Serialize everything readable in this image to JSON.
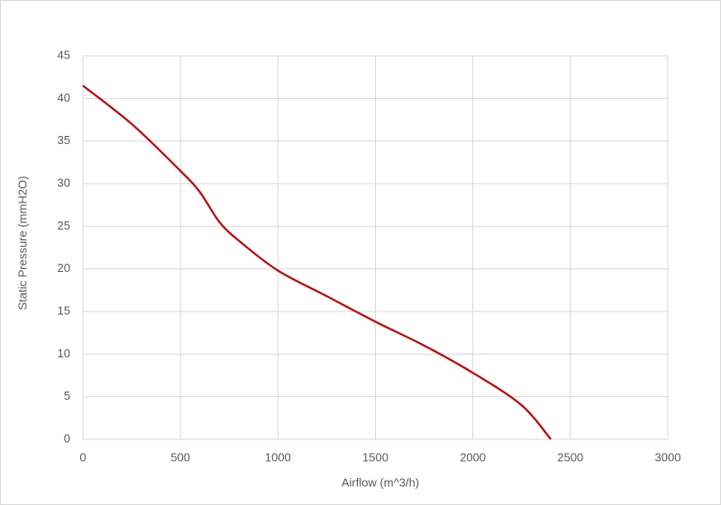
{
  "chart_data": {
    "type": "line",
    "x_label": "Airflow (m^3/h)",
    "y_label": "Static Pressure (mmH2O)",
    "x": [
      0,
      250,
      500,
      600,
      700,
      800,
      1000,
      1250,
      1500,
      1750,
      2000,
      2250,
      2400
    ],
    "series": [
      {
        "name": "Static Pressure",
        "color": "#c00000",
        "values": [
          41.5,
          37.0,
          31.5,
          29.0,
          25.5,
          23.3,
          19.8,
          16.8,
          13.8,
          11.0,
          7.8,
          4.0,
          0
        ]
      }
    ],
    "xlim": [
      0,
      3000
    ],
    "xticks": [
      0,
      500,
      1000,
      1500,
      2000,
      2500,
      3000
    ],
    "ylim": [
      0,
      45
    ],
    "yticks": [
      0,
      5,
      10,
      15,
      20,
      25,
      30,
      35,
      40,
      45
    ],
    "grid": true
  }
}
